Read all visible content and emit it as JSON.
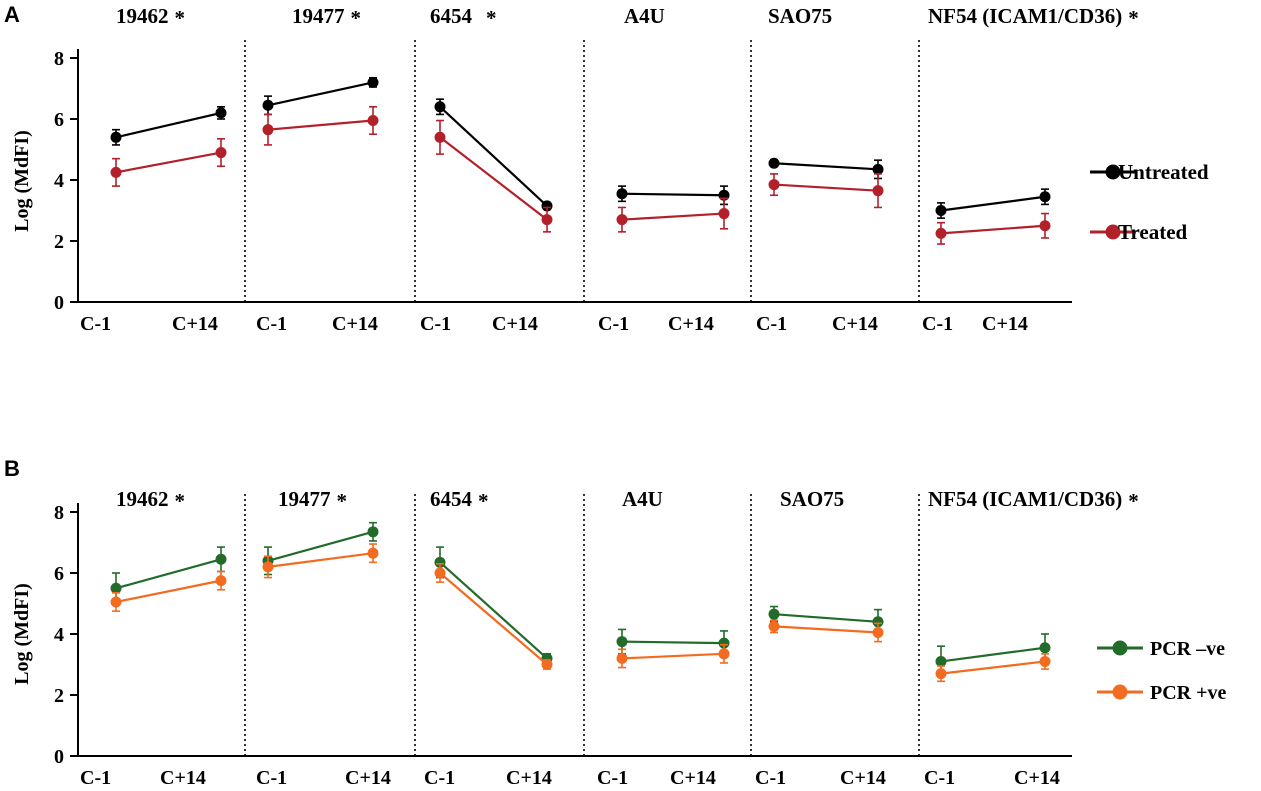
{
  "colors": {
    "untreated": "#000000",
    "treated": "#b2202a",
    "pcr_neg": "#236b2a",
    "pcr_pos": "#f26b21",
    "axis": "#000000"
  },
  "chart_data": [
    {
      "panel_label": "A",
      "type": "line",
      "ylabel": "Log (MdFI)",
      "ylim": [
        0,
        8
      ],
      "yticks": [
        "0",
        "2",
        "4",
        "6",
        "8"
      ],
      "xlabels": [
        "C-1",
        "C+14"
      ],
      "groups": [
        {
          "title": "19462",
          "star": "*"
        },
        {
          "title": "19477",
          "star": "*"
        },
        {
          "title": "6454",
          "star": "*"
        },
        {
          "title": "A4U",
          "star": ""
        },
        {
          "title": "SAO75",
          "star": ""
        },
        {
          "title": "NF54 (ICAM1/CD36)",
          "star": "*"
        }
      ],
      "series": [
        {
          "name": "Untreated",
          "color_key": "untreated",
          "values": [
            [
              5.4,
              6.2
            ],
            [
              6.45,
              7.2
            ],
            [
              6.4,
              3.15
            ],
            [
              3.55,
              3.5
            ],
            [
              4.55,
              4.35
            ],
            [
              3.0,
              3.45
            ]
          ],
          "errors": [
            [
              0.25,
              0.2
            ],
            [
              0.3,
              0.15
            ],
            [
              0.25,
              0.05
            ],
            [
              0.25,
              0.3
            ],
            [
              0.1,
              0.3
            ],
            [
              0.25,
              0.25
            ]
          ]
        },
        {
          "name": "Treated",
          "color_key": "treated",
          "values": [
            [
              4.25,
              4.9
            ],
            [
              5.65,
              5.95
            ],
            [
              5.4,
              2.7
            ],
            [
              2.7,
              2.9
            ],
            [
              3.85,
              3.65
            ],
            [
              2.25,
              2.5
            ]
          ],
          "errors": [
            [
              0.45,
              0.45
            ],
            [
              0.5,
              0.45
            ],
            [
              0.55,
              0.4
            ],
            [
              0.4,
              0.5
            ],
            [
              0.35,
              0.55
            ],
            [
              0.35,
              0.4
            ]
          ]
        }
      ]
    },
    {
      "panel_label": "B",
      "type": "line",
      "ylabel": "Log (MdFI)",
      "ylim": [
        0,
        8
      ],
      "yticks": [
        "0",
        "2",
        "4",
        "6",
        "8"
      ],
      "xlabels": [
        "C-1",
        "C+14"
      ],
      "groups": [
        {
          "title": "19462",
          "star": "*"
        },
        {
          "title": "19477",
          "star": "*"
        },
        {
          "title": "6454",
          "star": "*"
        },
        {
          "title": "A4U",
          "star": ""
        },
        {
          "title": "SAO75",
          "star": ""
        },
        {
          "title": "NF54 (ICAM1/CD36)",
          "star": "*"
        }
      ],
      "series": [
        {
          "name": "PCR –ve",
          "color_key": "pcr_neg",
          "values": [
            [
              5.5,
              6.45
            ],
            [
              6.4,
              7.35
            ],
            [
              6.35,
              3.2
            ],
            [
              3.75,
              3.7
            ],
            [
              4.65,
              4.4
            ],
            [
              3.1,
              3.55
            ]
          ],
          "errors": [
            [
              0.5,
              0.4
            ],
            [
              0.45,
              0.3
            ],
            [
              0.5,
              0.15
            ],
            [
              0.4,
              0.4
            ],
            [
              0.25,
              0.4
            ],
            [
              0.5,
              0.45
            ]
          ]
        },
        {
          "name": "PCR +ve",
          "color_key": "pcr_pos",
          "values": [
            [
              5.05,
              5.75
            ],
            [
              6.2,
              6.65
            ],
            [
              6.0,
              3.0
            ],
            [
              3.2,
              3.35
            ],
            [
              4.25,
              4.05
            ],
            [
              2.7,
              3.1
            ]
          ],
          "errors": [
            [
              0.3,
              0.3
            ],
            [
              0.35,
              0.3
            ],
            [
              0.3,
              0.15
            ],
            [
              0.3,
              0.3
            ],
            [
              0.2,
              0.3
            ],
            [
              0.25,
              0.25
            ]
          ]
        }
      ]
    }
  ]
}
